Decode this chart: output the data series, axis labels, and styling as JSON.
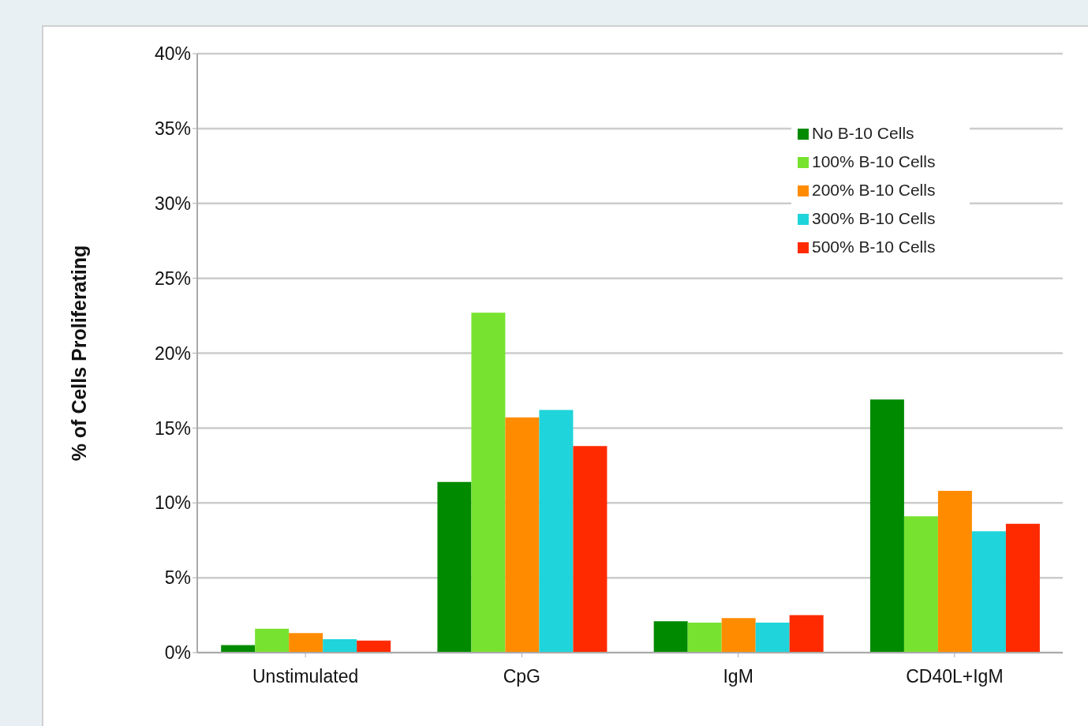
{
  "chart_data": {
    "type": "bar",
    "ylabel": "% of Cells Proliferating",
    "categories": [
      "Unstimulated",
      "CpG",
      "IgM",
      "CD40L+IgM"
    ],
    "series": [
      {
        "name": "No B-10 Cells",
        "color": "#008a00",
        "values": [
          0.5,
          11.4,
          2.1,
          16.9
        ]
      },
      {
        "name": "100% B-10 Cells",
        "color": "#77e22f",
        "values": [
          1.6,
          22.7,
          2.0,
          9.1
        ]
      },
      {
        "name": "200% B-10 Cells",
        "color": "#ff8c00",
        "values": [
          1.3,
          15.7,
          2.3,
          10.8
        ]
      },
      {
        "name": "300% B-10 Cells",
        "color": "#1fd4da",
        "values": [
          0.9,
          16.2,
          2.0,
          8.1
        ]
      },
      {
        "name": "500% B-10 Cells",
        "color": "#ff2a00",
        "values": [
          0.8,
          13.8,
          2.5,
          8.6
        ]
      }
    ],
    "ylim": [
      0,
      40
    ],
    "yticks": [
      {
        "value": 0,
        "label": "0%"
      },
      {
        "value": 5,
        "label": "5%"
      },
      {
        "value": 10,
        "label": "10%"
      },
      {
        "value": 15,
        "label": "15%"
      },
      {
        "value": 20,
        "label": "20%"
      },
      {
        "value": 25,
        "label": "25%"
      },
      {
        "value": 30,
        "label": "30%"
      },
      {
        "value": 35,
        "label": "35%"
      },
      {
        "value": 40,
        "label": "40%"
      }
    ],
    "grid": "y",
    "legend": "top right"
  }
}
